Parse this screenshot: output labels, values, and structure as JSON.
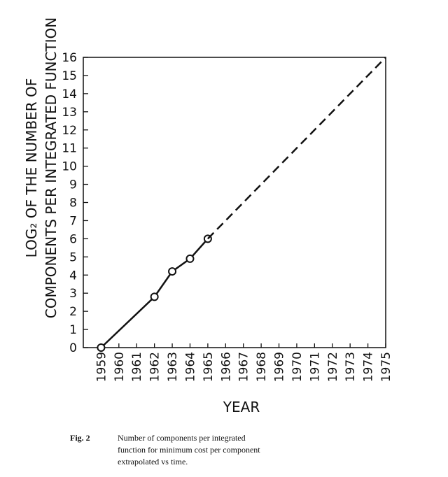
{
  "chart_data": {
    "type": "line",
    "xlabel": "YEAR",
    "ylabel_lines": [
      "LOG₂ OF THE NUMBER OF",
      "COMPONENTS PER INTEGRATED FUNCTION"
    ],
    "caption_label": "Fig. 2",
    "caption_lines": [
      "Number of components per integrated",
      "function for minimum cost per component",
      "extrapolated vs time."
    ],
    "xlim": [
      1958,
      1975
    ],
    "xticks": [
      1959,
      1960,
      1961,
      1962,
      1963,
      1964,
      1965,
      1966,
      1967,
      1968,
      1969,
      1970,
      1971,
      1972,
      1973,
      1974,
      1975
    ],
    "ylim": [
      0,
      16
    ],
    "yticks": [
      0,
      1,
      2,
      3,
      4,
      5,
      6,
      7,
      8,
      9,
      10,
      11,
      12,
      13,
      14,
      15,
      16
    ],
    "grid": false,
    "series": [
      {
        "color": "#111111",
        "style": "solid",
        "markers": true,
        "x": [
          1959,
          1962,
          1963,
          1964,
          1965
        ],
        "values": [
          0,
          2.8,
          4.2,
          4.9,
          6
        ]
      },
      {
        "color": "#111111",
        "style": "dashed",
        "markers": false,
        "x": [
          1965,
          1975
        ],
        "values": [
          6,
          16
        ]
      }
    ]
  }
}
